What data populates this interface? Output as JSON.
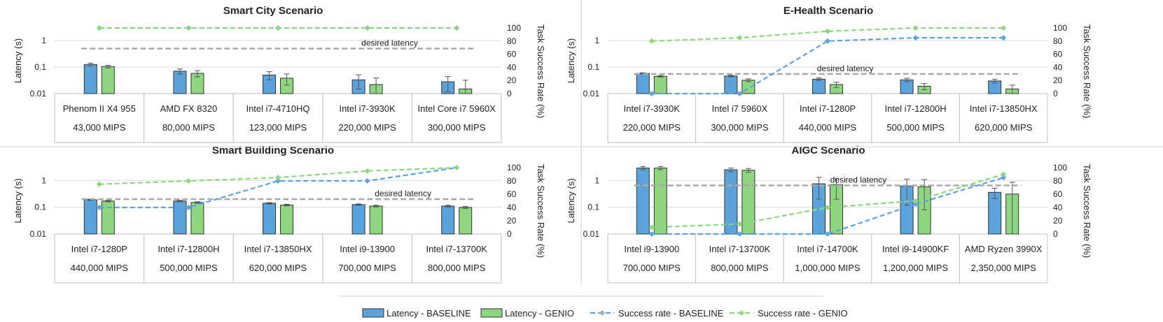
{
  "colors": {
    "baseline_bar": "#5BA3DD",
    "genio_bar": "#8ED67F",
    "baseline_line": "#5BA3DD",
    "genio_line": "#8ED67F",
    "desired": "#A9A9A9",
    "grid": "#D9D9D9"
  },
  "legend": {
    "items": [
      {
        "label": "Latency - BASELINE",
        "kind": "bar",
        "color": "#5BA3DD"
      },
      {
        "label": "Latency - GENIO",
        "kind": "bar",
        "color": "#8ED67F"
      },
      {
        "label": "Success rate - BASELINE",
        "kind": "line",
        "color": "#5BA3DD"
      },
      {
        "label": "Success rate - GENIO",
        "kind": "line",
        "color": "#8ED67F"
      }
    ]
  },
  "chart_data": [
    {
      "type": "bar",
      "title": "Smart City Scenario",
      "ylabel": "Latency (s)",
      "y2label": "Task Success Rate (%)",
      "yscale": "log",
      "ylim": [
        0.01,
        3
      ],
      "yticks": [
        "0.01",
        "0.1",
        "1"
      ],
      "y2lim": [
        0,
        100
      ],
      "y2ticks": [
        "0",
        "20",
        "40",
        "60",
        "80",
        "100"
      ],
      "categories": [
        "Phenom II X4 955",
        "AMD FX 8320",
        "Intel i7-4710HQ",
        "Intel i7-3930K",
        "Intel Core i7 5960X"
      ],
      "mips": [
        "43,000 MIPS",
        "80,000 MIPS",
        "123,000 MIPS",
        "220,000 MIPS",
        "300,000 MIPS"
      ],
      "desired_latency": {
        "label": "desired latency",
        "value": 0.5
      },
      "series": [
        {
          "name": "Latency - BASELINE",
          "kind": "bar",
          "values": [
            0.125,
            0.07,
            0.05,
            0.033,
            0.028
          ],
          "err": [
            0.015,
            0.015,
            0.017,
            0.018,
            0.016
          ]
        },
        {
          "name": "Latency - GENIO",
          "kind": "bar",
          "values": [
            0.105,
            0.058,
            0.038,
            0.022,
            0.015
          ],
          "err": [
            0.012,
            0.015,
            0.017,
            0.017,
            0.017
          ]
        },
        {
          "name": "Success rate - BASELINE",
          "kind": "line",
          "values": [
            100,
            100,
            100,
            100,
            100
          ]
        },
        {
          "name": "Success rate - GENIO",
          "kind": "line",
          "values": [
            100,
            100,
            100,
            100,
            100
          ]
        }
      ]
    },
    {
      "type": "bar",
      "title": "E-Health Scenario",
      "ylabel": "Latency (s)",
      "y2label": "Task Success Rate (%)",
      "yscale": "log",
      "ylim": [
        0.01,
        3
      ],
      "yticks": [
        "0.01",
        "0.1",
        "1"
      ],
      "y2lim": [
        0,
        100
      ],
      "y2ticks": [
        "0",
        "20",
        "40",
        "60",
        "80",
        "100"
      ],
      "categories": [
        "Intel i7-3930K",
        "Intel i7 5960X",
        "Intel i7-1280P",
        "Intel i7-12800H",
        "Intel i7-13850HX"
      ],
      "mips": [
        "220,000 MIPS",
        "300,000 MIPS",
        "440,000 MIPS",
        "500,000 MIPS",
        "620,000 MIPS"
      ],
      "desired_latency": {
        "label": "desired latency",
        "value": 0.055
      },
      "series": [
        {
          "name": "Latency - BASELINE",
          "kind": "bar",
          "values": [
            0.058,
            0.046,
            0.035,
            0.033,
            0.03
          ],
          "err": [
            0.003,
            0.003,
            0.004,
            0.005,
            0.005
          ]
        },
        {
          "name": "Latency - GENIO",
          "kind": "bar",
          "values": [
            0.045,
            0.032,
            0.022,
            0.019,
            0.015
          ],
          "err": [
            0.003,
            0.004,
            0.005,
            0.005,
            0.006
          ]
        },
        {
          "name": "Success rate - BASELINE",
          "kind": "line",
          "values": [
            0,
            0,
            80,
            85,
            85
          ]
        },
        {
          "name": "Success rate - GENIO",
          "kind": "line",
          "values": [
            80,
            85,
            95,
            100,
            100
          ]
        }
      ]
    },
    {
      "type": "bar",
      "title": "Smart Building Scenario",
      "ylabel": "Latency (s)",
      "y2label": "Task Success Rate (%)",
      "yscale": "log",
      "ylim": [
        0.01,
        3
      ],
      "yticks": [
        "0.01",
        "0.1",
        "1"
      ],
      "y2lim": [
        0,
        100
      ],
      "y2ticks": [
        "0",
        "20",
        "40",
        "60",
        "80",
        "100"
      ],
      "categories": [
        "Intel i7-1280P",
        "Intel i7-12800H",
        "Intel i7-13850HX",
        "Intel i9-13900",
        "Intel i7-13700K"
      ],
      "mips": [
        "440,000 MIPS",
        "500,000 MIPS",
        "620,000 MIPS",
        "700,000 MIPS",
        "800,000 MIPS"
      ],
      "desired_latency": {
        "label": "desired latency",
        "value": 0.2
      },
      "series": [
        {
          "name": "Latency - BASELINE",
          "kind": "bar",
          "values": [
            0.19,
            0.17,
            0.14,
            0.125,
            0.11
          ],
          "err": [
            0.01,
            0.01,
            0.008,
            0.008,
            0.008
          ]
        },
        {
          "name": "Latency - GENIO",
          "kind": "bar",
          "values": [
            0.17,
            0.15,
            0.12,
            0.11,
            0.098
          ],
          "err": [
            0.01,
            0.01,
            0.008,
            0.008,
            0.008
          ]
        },
        {
          "name": "Success rate - BASELINE",
          "kind": "line",
          "values": [
            40,
            40,
            80,
            80,
            100
          ]
        },
        {
          "name": "Success rate - GENIO",
          "kind": "line",
          "values": [
            75,
            80,
            85,
            95,
            100
          ]
        }
      ]
    },
    {
      "type": "bar",
      "title": "AIGC Scenario",
      "ylabel": "Latency (s)",
      "y2label": "Task Success Rate (%)",
      "yscale": "log",
      "ylim": [
        0.01,
        3
      ],
      "yticks": [
        "0.01",
        "0.1",
        "1"
      ],
      "y2lim": [
        0,
        100
      ],
      "y2ticks": [
        "0",
        "20",
        "40",
        "60",
        "80",
        "100"
      ],
      "categories": [
        "Intel i9-13900",
        "Intel i7-13700K",
        "Intel i7-14700K",
        "Intel i9-14900KF",
        "AMD Ryzen 3990X"
      ],
      "mips": [
        "700,000 MIPS",
        "800,000 MIPS",
        "1,000,000 MIPS",
        "1,200,000 MIPS",
        "2,350,000 MIPS"
      ],
      "desired_latency": {
        "label": "desired latency",
        "value": 0.65
      },
      "series": [
        {
          "name": "Latency - BASELINE",
          "kind": "bar",
          "values": [
            2.9,
            2.5,
            0.75,
            0.62,
            0.36
          ],
          "err": [
            0.4,
            0.4,
            0.55,
            0.5,
            0.15
          ]
        },
        {
          "name": "Latency - GENIO",
          "kind": "bar",
          "values": [
            2.9,
            2.4,
            0.7,
            0.58,
            0.31
          ],
          "err": [
            0.4,
            0.4,
            0.5,
            0.5,
            0.55
          ]
        },
        {
          "name": "Success rate - BASELINE",
          "kind": "line",
          "values": [
            0,
            0,
            0,
            45,
            85
          ]
        },
        {
          "name": "Success rate - GENIO",
          "kind": "line",
          "values": [
            10,
            15,
            40,
            50,
            90
          ]
        }
      ]
    }
  ]
}
